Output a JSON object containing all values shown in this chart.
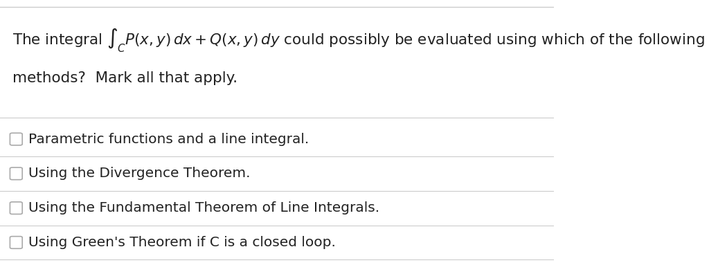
{
  "background_color": "#ffffff",
  "border_color": "#cccccc",
  "text_color": "#222222",
  "question_line1": "The integral $\\int_C P(x,y)\\,dx + Q(x,y)\\,dy$ could possibly be evaluated using which of the following",
  "question_line2": "methods?  Mark all that apply.",
  "options": [
    "Parametric functions and a line integral.",
    "Using the Divergence Theorem.",
    "Using the Fundamental Theorem of Line Integrals.",
    "Using Green's Theorem if C is a closed loop."
  ],
  "checkbox_color": "#ffffff",
  "checkbox_edge_color": "#aaaaaa",
  "separator_color": "#cccccc",
  "question_fontsize": 15.5,
  "option_fontsize": 14.5,
  "figsize": [
    10.24,
    3.83
  ],
  "dpi": 100
}
